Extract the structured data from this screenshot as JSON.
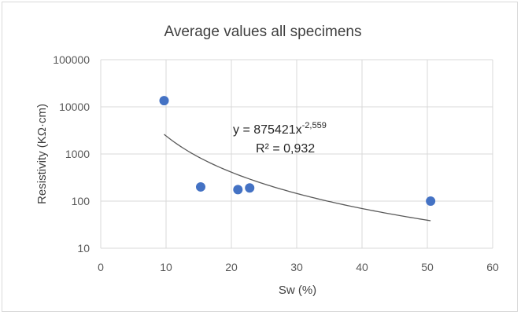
{
  "chart_data": {
    "type": "scatter",
    "title": "Average values all specimens",
    "xlabel": "Sw (%)",
    "ylabel": "Resistivity (KΩ·cm)",
    "xlim": [
      0,
      60
    ],
    "ylim": [
      10,
      100000
    ],
    "y_scale": "log",
    "x_ticks": [
      0,
      10,
      20,
      30,
      40,
      50,
      60
    ],
    "y_ticks": [
      10,
      100,
      1000,
      10000,
      100000
    ],
    "y_tick_labels": [
      "10",
      "100",
      "1000",
      "10000",
      "100000"
    ],
    "grid": true,
    "series": [
      {
        "x": [
          9.7,
          15.3,
          21.0,
          22.8,
          50.5
        ],
        "y": [
          13500,
          200,
          175,
          190,
          100
        ],
        "color": "#4472c4"
      }
    ],
    "trendline": {
      "type": "power",
      "coefficient": 875421,
      "exponent": -2.559,
      "x_range": [
        9.7,
        50.5
      ],
      "color": "#595959",
      "equation_base": "y = 875421x",
      "equation_exponent": "-2,559",
      "r_squared_label": "R² = 0,932"
    }
  }
}
